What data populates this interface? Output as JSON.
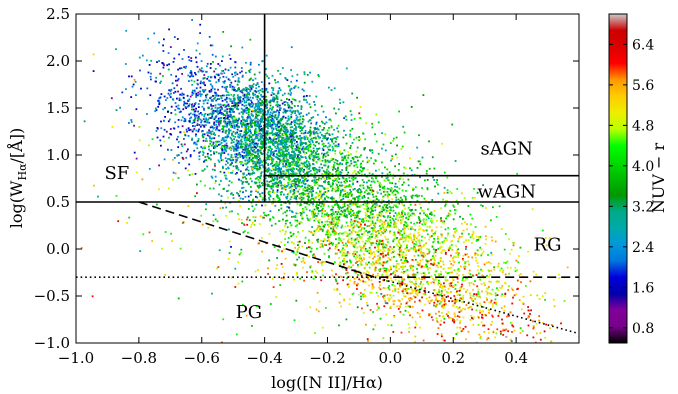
{
  "chart_data": {
    "type": "scatter",
    "xlabel": "log([N II]/Hα)",
    "ylabel": "log(W_Hα/[Å])",
    "xlim": [
      -1.0,
      0.6
    ],
    "ylim": [
      -1.0,
      2.5
    ],
    "x_ticks": [
      "−1.0",
      "−0.8",
      "−0.6",
      "−0.4",
      "−0.2",
      "0.0",
      "0.2",
      "0.4"
    ],
    "y_ticks": [
      "−1.0",
      "−0.5",
      "0.0",
      "0.5",
      "1.0",
      "1.5",
      "2.0",
      "2.5"
    ],
    "x_tick_values": [
      -1.0,
      -0.8,
      -0.6,
      -0.4,
      -0.2,
      0.0,
      0.2,
      0.4
    ],
    "y_tick_values": [
      -1.0,
      -0.5,
      0.0,
      0.5,
      1.0,
      1.5,
      2.0,
      2.5
    ],
    "colorbar": {
      "label": "NUV − r",
      "range": [
        0.5,
        7.0
      ],
      "colormap": "nipy_spectral",
      "ticks": [
        "0.8",
        "1.6",
        "2.4",
        "3.2",
        "4.0",
        "4.8",
        "5.6",
        "6.4"
      ],
      "tick_values": [
        0.8,
        1.6,
        2.4,
        3.2,
        4.0,
        4.8,
        5.6,
        6.4
      ]
    },
    "regions": [
      {
        "label": "SF",
        "x": -0.87,
        "y": 0.81
      },
      {
        "label": "sAGN",
        "x": 0.37,
        "y": 1.07
      },
      {
        "label": "wAGN",
        "x": 0.37,
        "y": 0.61
      },
      {
        "label": "RG",
        "x": 0.5,
        "y": 0.05
      },
      {
        "label": "PG",
        "x": -0.45,
        "y": -0.67
      }
    ],
    "division_lines": [
      {
        "name": "vertical-divider",
        "style": "solid",
        "x": [
          -0.4,
          -0.4
        ],
        "y": [
          0.5,
          2.5
        ]
      },
      {
        "name": "sagn-wagn-divider",
        "style": "solid",
        "x": [
          -0.4,
          0.6
        ],
        "y": [
          0.78,
          0.78
        ]
      },
      {
        "name": "ew-threshold",
        "style": "solid",
        "x": [
          -1.0,
          0.6
        ],
        "y": [
          0.5,
          0.5
        ]
      },
      {
        "name": "kauffmann-line",
        "style": "dashed",
        "x": [
          -0.8,
          -0.05,
          0.6
        ],
        "y": [
          0.5,
          -0.3,
          -0.3
        ]
      },
      {
        "name": "passive-threshold",
        "style": "dotted",
        "x": [
          -1.0,
          -0.05
        ],
        "y": [
          -0.3,
          -0.3
        ]
      },
      {
        "name": "passive-diagonal",
        "style": "dotted",
        "x": [
          -0.05,
          0.6
        ],
        "y": [
          -0.3,
          -0.9
        ]
      }
    ],
    "populations": [
      {
        "name": "sf-core",
        "count": 900,
        "cx": -0.55,
        "cy": 1.45,
        "sx": 0.12,
        "sy": 0.3,
        "c": 2.0,
        "cs": 0.5
      },
      {
        "name": "sf-mid",
        "count": 2000,
        "cx": -0.38,
        "cy": 1.15,
        "sx": 0.1,
        "sy": 0.32,
        "c": 2.9,
        "cs": 0.55
      },
      {
        "name": "agn-band",
        "count": 1700,
        "cx": -0.15,
        "cy": 0.55,
        "sx": 0.17,
        "sy": 0.38,
        "c": 3.8,
        "cs": 0.6
      },
      {
        "name": "rg-cloud",
        "count": 1100,
        "cx": 0.05,
        "cy": 0.0,
        "sx": 0.2,
        "sy": 0.32,
        "c": 4.6,
        "cs": 0.5
      },
      {
        "name": "pg-cloud",
        "count": 550,
        "cx": 0.15,
        "cy": -0.55,
        "sx": 0.2,
        "sy": 0.22,
        "c": 5.2,
        "cs": 0.55
      },
      {
        "name": "outskirts",
        "count": 350,
        "cx": -0.3,
        "cy": 0.1,
        "sx": 0.35,
        "sy": 0.6,
        "c": 4.5,
        "cs": 0.9
      }
    ]
  }
}
